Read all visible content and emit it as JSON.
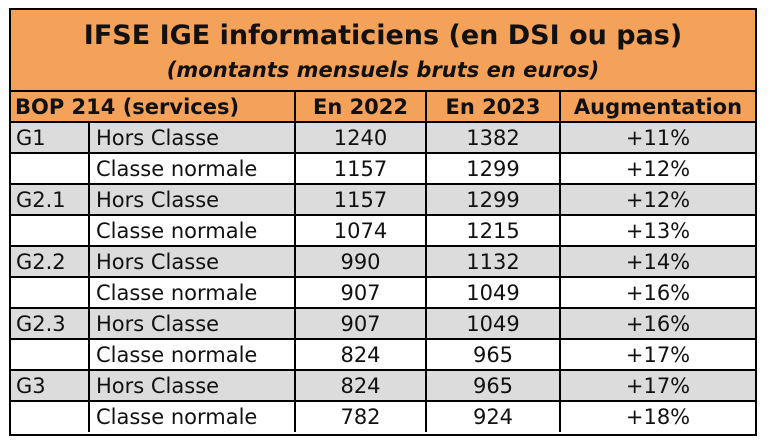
{
  "title": "IFSE IGE informaticiens (en DSI ou pas)",
  "subtitle": "(montants mensuels bruts en euros)",
  "headers": {
    "bop": "BOP 214 (services)",
    "y2022": "En 2022",
    "y2023": "En 2023",
    "augmentation": "Augmentation"
  },
  "rows": [
    {
      "grade": "G1",
      "classe": "Hors Classe",
      "y2022": "1240",
      "y2023": "1382",
      "aug": "+11%"
    },
    {
      "grade": "",
      "classe": "Classe normale",
      "y2022": "1157",
      "y2023": "1299",
      "aug": "+12%"
    },
    {
      "grade": "G2.1",
      "classe": "Hors Classe",
      "y2022": "1157",
      "y2023": "1299",
      "aug": "+12%"
    },
    {
      "grade": "",
      "classe": "Classe normale",
      "y2022": "1074",
      "y2023": "1215",
      "aug": "+13%"
    },
    {
      "grade": "G2.2",
      "classe": "Hors Classe",
      "y2022": "990",
      "y2023": "1132",
      "aug": "+14%"
    },
    {
      "grade": "",
      "classe": "Classe normale",
      "y2022": "907",
      "y2023": "1049",
      "aug": "+16%"
    },
    {
      "grade": "G2.3",
      "classe": "Hors Classe",
      "y2022": "907",
      "y2023": "1049",
      "aug": "+16%"
    },
    {
      "grade": "",
      "classe": "Classe normale",
      "y2022": "824",
      "y2023": "965",
      "aug": "+17%"
    },
    {
      "grade": "G3",
      "classe": "Hors Classe",
      "y2022": "824",
      "y2023": "965",
      "aug": "+17%"
    },
    {
      "grade": "",
      "classe": "Classe normale",
      "y2022": "782",
      "y2023": "924",
      "aug": "+18%"
    }
  ],
  "colors": {
    "header_orange": "#F4A15A",
    "row_shade": "#DCDCDC"
  }
}
